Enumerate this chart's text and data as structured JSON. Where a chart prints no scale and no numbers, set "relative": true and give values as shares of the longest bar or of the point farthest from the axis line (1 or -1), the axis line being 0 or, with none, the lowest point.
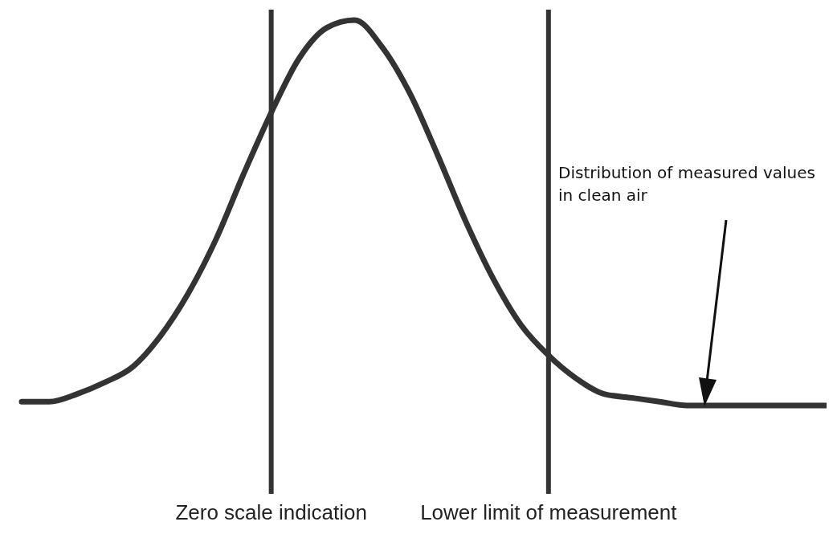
{
  "chart_data": {
    "type": "line",
    "relative": true,
    "categories": [
      null,
      null,
      null,
      null,
      null,
      null,
      null,
      null,
      null,
      null,
      null,
      null,
      null,
      null,
      null,
      null,
      null,
      null,
      null,
      null,
      null,
      null,
      null,
      null,
      null,
      null,
      null,
      null,
      null,
      null
    ],
    "values": [
      0.01,
      0.01,
      0.03,
      0.06,
      0.1,
      0.18,
      0.29,
      0.43,
      0.6,
      0.76,
      0.9,
      0.98,
      1,
      0.93,
      0.81,
      0.65,
      0.48,
      0.33,
      0.21,
      0.13,
      0.07,
      0.03,
      0.02,
      0.01,
      0,
      0,
      0,
      0,
      0,
      0
    ],
    "color": "#333333",
    "marker": "none",
    "annotations": [
      "Zero scale indication",
      "Lower limit of measurement",
      "Distribution of measured values in clean air"
    ]
  }
}
